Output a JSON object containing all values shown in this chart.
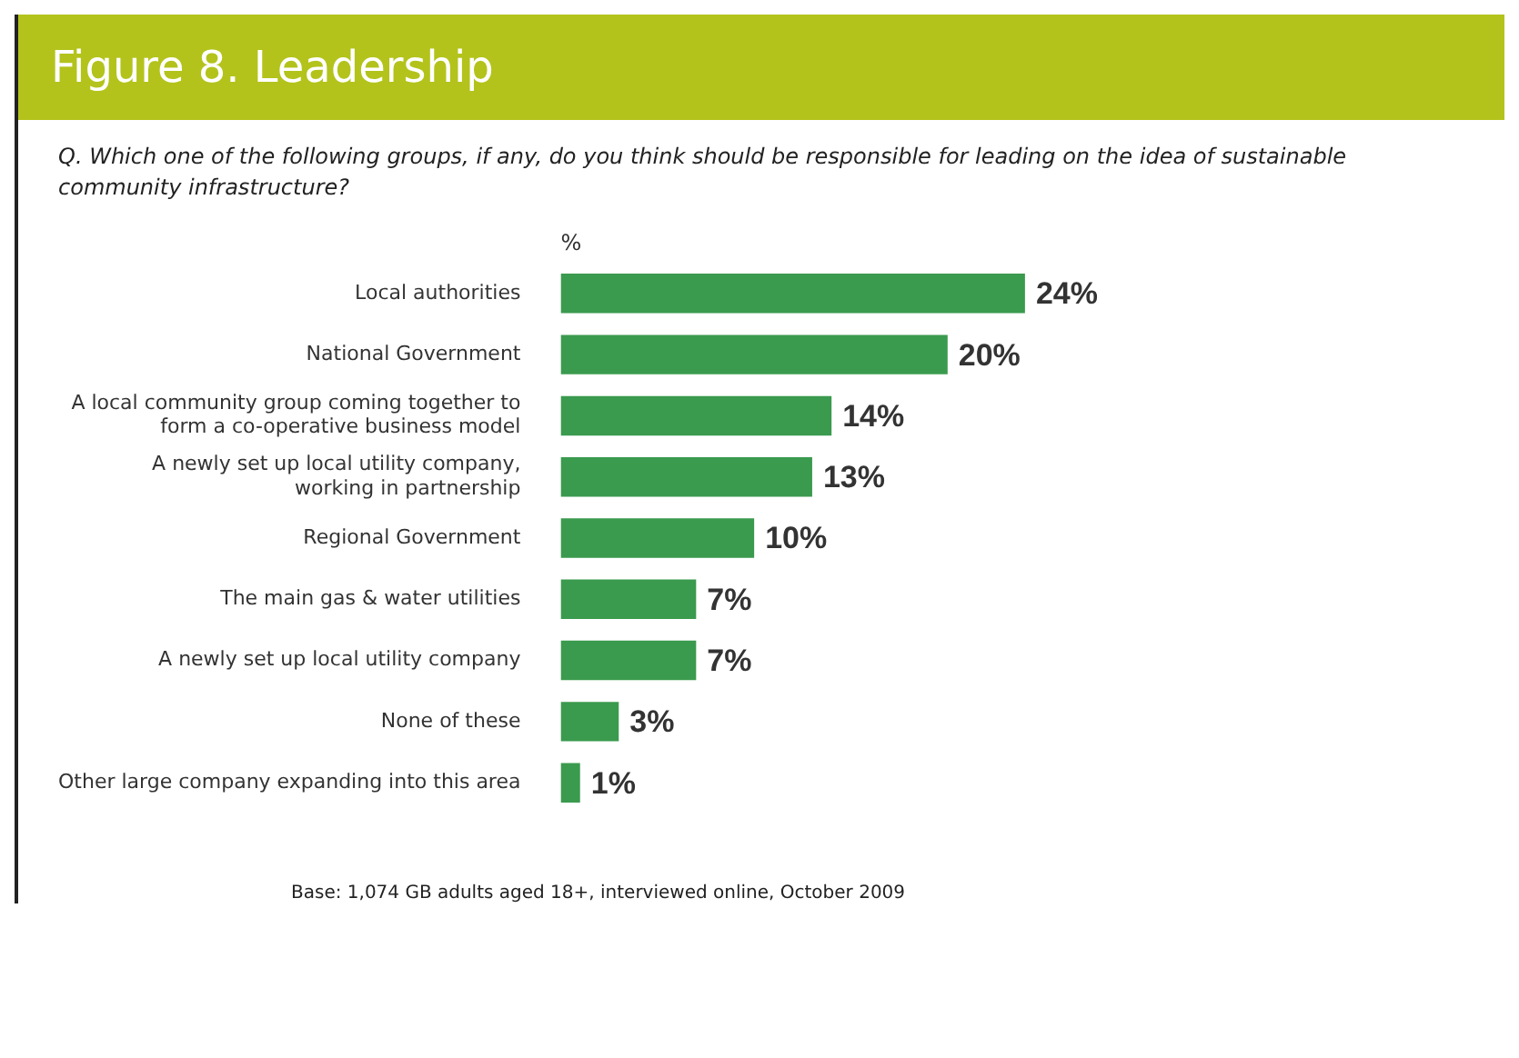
{
  "chart_data": {
    "type": "bar",
    "orientation": "horizontal",
    "title": "Figure 8. Leadership",
    "subtitle": "Q. Which one of the following groups, if any, do you think should be responsible for leading on the idea of sustainable community infrastructure?",
    "xlabel": "%",
    "categories": [
      "Local authorities",
      "National Government",
      "A local community group coming together to form a co-operative business model",
      "A newly set up local utility company, working in partnership",
      "Regional Government",
      "The main gas & water utilities",
      "A newly set up local utility company",
      "None of these",
      "Other large company expanding into this area"
    ],
    "values": [
      24,
      20,
      14,
      13,
      10,
      7,
      7,
      3,
      1
    ],
    "value_labels": [
      "24%",
      "20%",
      "14%",
      "13%",
      "10%",
      "7%",
      "7%",
      "3%",
      "1%"
    ],
    "color": "#3a9a4e",
    "grid": false,
    "legend": false,
    "annotations": [
      "Base: 1,074 GB adults aged 18+, interviewed online, October 2009"
    ]
  }
}
